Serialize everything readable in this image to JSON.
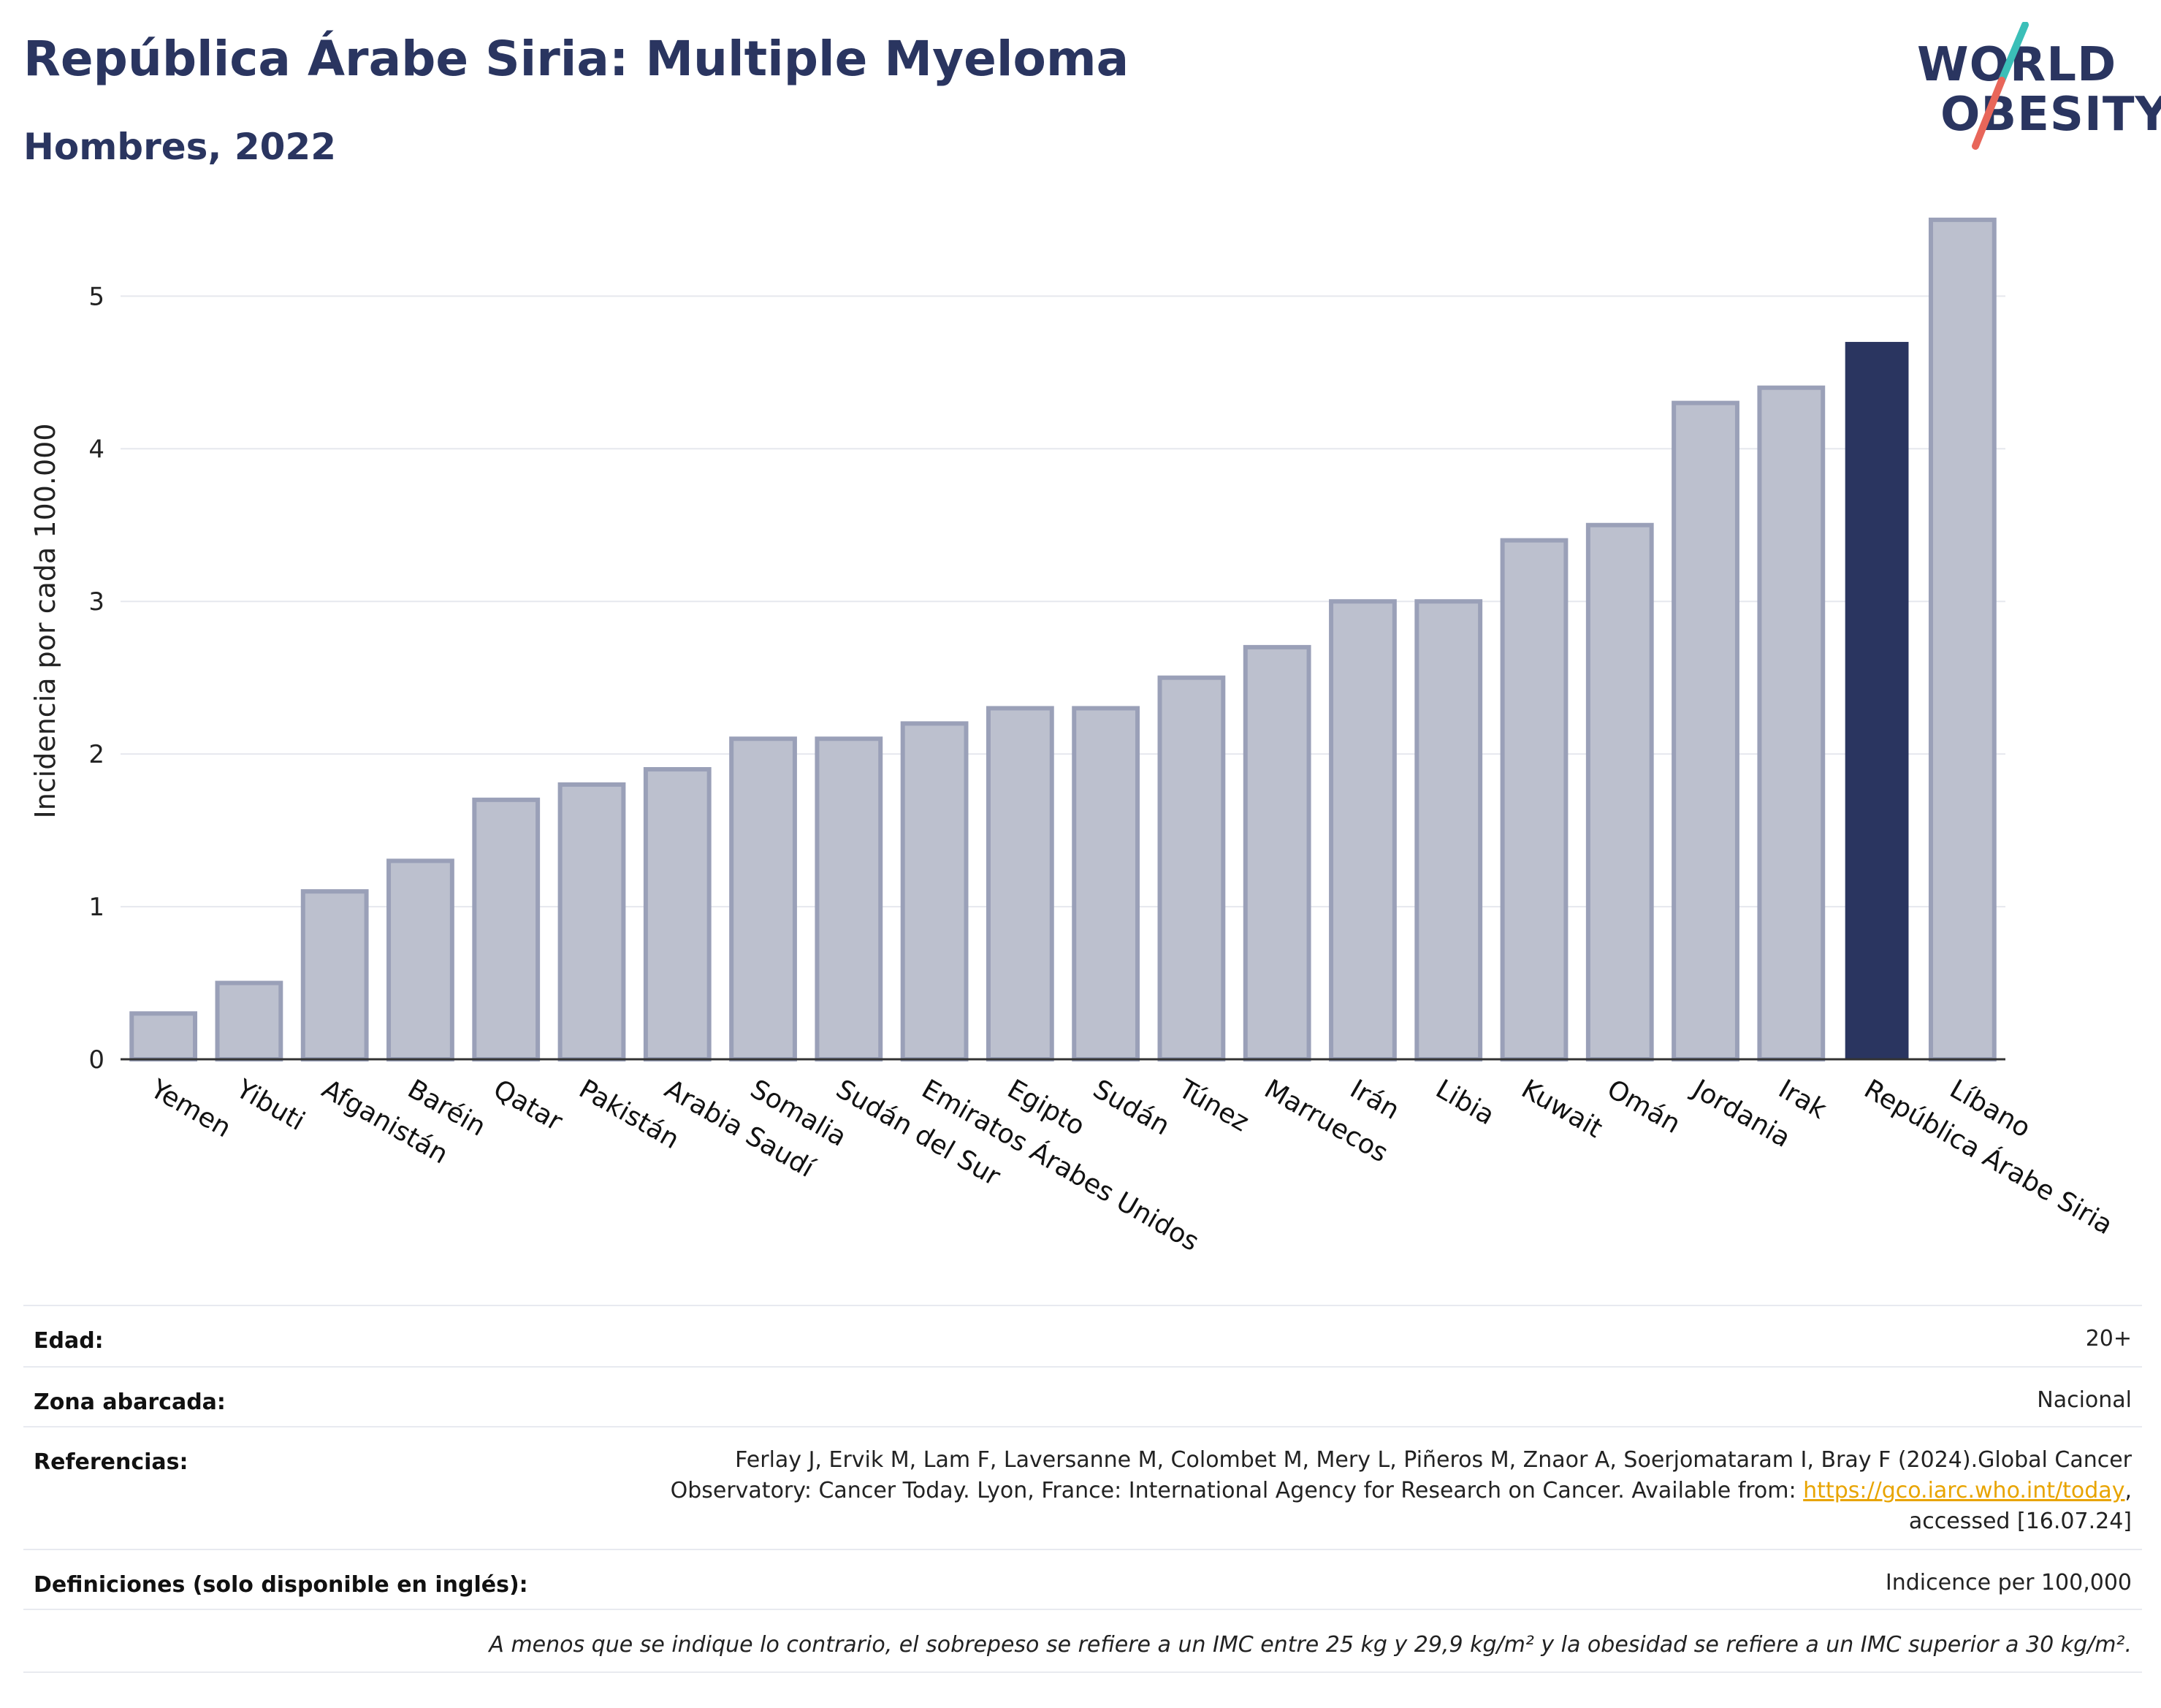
{
  "header": {
    "title": "República Árabe Siria: Multiple Myeloma",
    "subtitle": "Hombres, 2022"
  },
  "logo": {
    "line1": "WORLD",
    "line2": "OBESITY",
    "colors": {
      "text": "#2a3560",
      "slash_top": "#3bbfb8",
      "slash_bottom": "#e8665a"
    }
  },
  "chart_data": {
    "type": "bar",
    "ylabel": "Incidencia por cada 100.000",
    "xlabel": "",
    "ylim": [
      0,
      5.6
    ],
    "yticks": [
      0,
      1,
      2,
      3,
      4,
      5
    ],
    "grid": true,
    "highlight": "República Árabe Siria",
    "colors": {
      "bar": "#bcc0ce",
      "bar_border": "#9aa0b8",
      "highlight": "#2a3560",
      "grid": "#e6e8ee",
      "axis": "#333333"
    },
    "categories": [
      "Yemen",
      "Yibuti",
      "Afganistán",
      "Baréin",
      "Qatar",
      "Pakistán",
      "Arabia Saudí",
      "Somalia",
      "Sudán del Sur",
      "Emiratos Árabes Unidos",
      "Egipto",
      "Sudán",
      "Túnez",
      "Marruecos",
      "Irán",
      "Libia",
      "Kuwait",
      "Omán",
      "Jordania",
      "Irak",
      "República Árabe Siria",
      "Líbano"
    ],
    "values": [
      0.3,
      0.5,
      1.1,
      1.3,
      1.7,
      1.8,
      1.9,
      2.1,
      2.1,
      2.2,
      2.3,
      2.3,
      2.5,
      2.7,
      3.0,
      3.0,
      3.4,
      3.5,
      4.3,
      4.4,
      4.7,
      5.5
    ]
  },
  "meta": {
    "rows": [
      {
        "key": "Edad:",
        "value": "20+"
      },
      {
        "key": "Zona abarcada:",
        "value": "Nacional"
      },
      {
        "key": "Referencias:",
        "value_lines": [
          "Ferlay J, Ervik M, Lam F, Laversanne M, Colombet M, Mery L, Piñeros M, Znaor A, Soerjomataram I, Bray F (2024).Global Cancer",
          "Observatory: Cancer Today. Lyon, France: International Agency for Research on Cancer. Available from: ",
          "https://gco.iarc.who.int/today",
          ",",
          "accessed [16.07.24]"
        ]
      },
      {
        "key": "Definiciones (solo disponible en inglés):",
        "value": "Indicence per 100,000"
      }
    ],
    "note": "A menos que se indique lo contrario, el sobrepeso se refiere a un IMC entre 25 kg y 29,9 kg/m² y la obesidad se refiere a un IMC superior a 30 kg/m²."
  }
}
